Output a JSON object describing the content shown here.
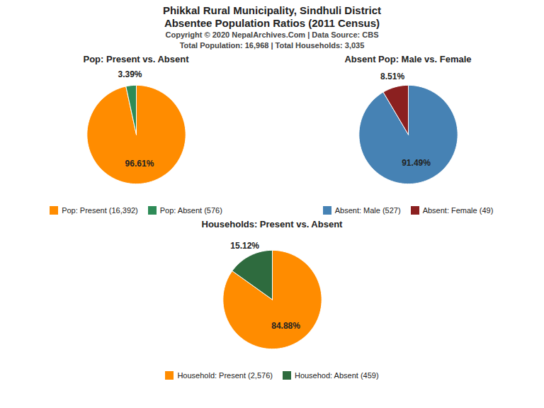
{
  "title": "Phikkal Rural Municipality, Sindhuli District",
  "subtitle": "Absentee Population Ratios (2011 Census)",
  "annotations": [
    "Copyright © 2020 NepalArchives.Com | Data Source: CBS",
    "Total Population: 16,968 | Total Households: 3,035"
  ],
  "chart_data": [
    {
      "type": "pie",
      "title": "Pop: Present vs. Absent",
      "categories": [
        "Pop: Present (16,392)",
        "Pop: Absent (576)"
      ],
      "values": [
        96.61,
        3.39
      ],
      "value_labels": [
        "96.61%",
        "3.39%"
      ],
      "colors": [
        "#FF8C00",
        "#2E8B57"
      ],
      "data_labels": true,
      "legend": "bottom"
    },
    {
      "type": "pie",
      "title": "Absent Pop: Male vs. Female",
      "categories": [
        "Absent: Male (527)",
        "Absent: Female (49)"
      ],
      "values": [
        91.49,
        8.51
      ],
      "value_labels": [
        "91.49%",
        "8.51%"
      ],
      "colors": [
        "#4682B4",
        "#8B2020"
      ],
      "data_labels": true,
      "legend": "bottom"
    },
    {
      "type": "pie",
      "title": "Households: Present vs. Absent",
      "categories": [
        "Household: Present (2,576)",
        "Househod: Absent (459)"
      ],
      "values": [
        84.88,
        15.12
      ],
      "value_labels": [
        "84.88%",
        "15.12%"
      ],
      "colors": [
        "#FF8C00",
        "#2E6B3E"
      ],
      "data_labels": true,
      "legend": "bottom"
    }
  ]
}
